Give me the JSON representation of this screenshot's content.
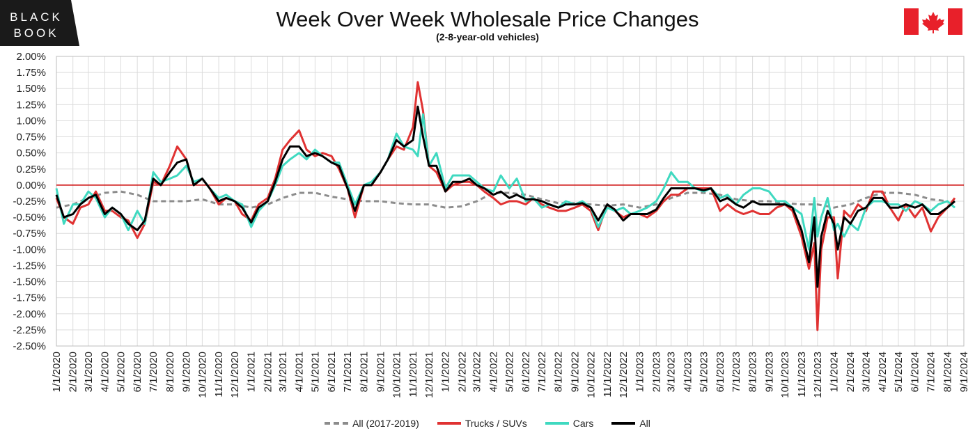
{
  "brand": {
    "logo_line1": "BLACK",
    "logo_line2": "BOOK"
  },
  "header": {
    "title": "Week Over Week Wholesale Price Changes",
    "subtitle": "(2-8-year-old vehicles)"
  },
  "flag_icon": "canada-flag-icon",
  "colors": {
    "trucks": "#e03232",
    "cars": "#3fd9c0",
    "all": "#000000",
    "baseline": "#8c8c8c",
    "zero_line": "#cc0000",
    "grid": "#dcdcdc"
  },
  "chart_data": {
    "type": "line",
    "title": "Week Over Week Wholesale Price Changes",
    "subtitle": "(2-8-year-old vehicles)",
    "xlabel": "",
    "ylabel": "",
    "ylim": [
      -2.5,
      2.0
    ],
    "yticks": [
      "2.00%",
      "1.75%",
      "1.50%",
      "1.25%",
      "1.00%",
      "0.75%",
      "0.50%",
      "0.25%",
      "0.00%",
      "-0.25%",
      "-0.50%",
      "-0.75%",
      "-1.00%",
      "-1.25%",
      "-1.50%",
      "-1.75%",
      "-2.00%",
      "-2.25%",
      "-2.50%"
    ],
    "xticks": [
      "1/1/2020",
      "2/1/2020",
      "3/1/2020",
      "4/1/2020",
      "5/1/2020",
      "6/1/2020",
      "7/1/2020",
      "8/1/2020",
      "9/1/2020",
      "10/1/2020",
      "11/1/2020",
      "12/1/2020",
      "1/1/2021",
      "2/1/2021",
      "3/1/2021",
      "4/1/2021",
      "5/1/2021",
      "6/1/2021",
      "7/1/2021",
      "8/1/2021",
      "9/1/2021",
      "10/1/2021",
      "11/1/2021",
      "12/1/2021",
      "1/1/2022",
      "2/1/2022",
      "3/1/2022",
      "4/1/2022",
      "5/1/2022",
      "6/1/2022",
      "7/1/2022",
      "8/1/2022",
      "9/1/2022",
      "10/1/2022",
      "11/1/2022",
      "12/1/2022",
      "1/1/2023",
      "2/1/2023",
      "3/1/2023",
      "4/1/2023",
      "5/1/2023",
      "6/1/2023",
      "7/1/2023",
      "8/1/2023",
      "9/1/2023",
      "10/1/2023",
      "11/1/2023",
      "12/1/2023",
      "1/1/2024",
      "2/1/2024",
      "3/1/2024",
      "4/1/2024",
      "5/1/2024",
      "6/1/2024",
      "7/1/2024",
      "8/1/2024",
      "9/1/2024"
    ],
    "grid": true,
    "legend_position": "bottom",
    "series": [
      {
        "name": "All (2017-2019)",
        "style": "dashed",
        "color": "#8c8c8c",
        "x": [
          "1/1/2020",
          "2/1/2020",
          "3/1/2020",
          "4/1/2020",
          "5/1/2020",
          "6/1/2020",
          "7/1/2020",
          "8/1/2020",
          "9/1/2020",
          "10/1/2020",
          "11/1/2020",
          "12/1/2020",
          "1/1/2021",
          "2/1/2021",
          "3/1/2021",
          "4/1/2021",
          "5/1/2021",
          "6/1/2021",
          "7/1/2021",
          "8/1/2021",
          "9/1/2021",
          "10/1/2021",
          "11/1/2021",
          "12/1/2021",
          "1/1/2022",
          "2/1/2022",
          "3/1/2022",
          "4/1/2022",
          "5/1/2022",
          "6/1/2022",
          "7/1/2022",
          "8/1/2022",
          "9/1/2022",
          "10/1/2022",
          "11/1/2022",
          "12/1/2022",
          "1/1/2023",
          "2/1/2023",
          "3/1/2023",
          "4/1/2023",
          "5/1/2023",
          "6/1/2023",
          "7/1/2023",
          "8/1/2023",
          "9/1/2023",
          "10/1/2023",
          "11/1/2023",
          "12/1/2023",
          "1/1/2024",
          "2/1/2024",
          "3/1/2024",
          "4/1/2024",
          "5/1/2024",
          "6/1/2024",
          "7/1/2024",
          "8/1/2024"
        ],
        "values": [
          -0.35,
          -0.3,
          -0.2,
          -0.12,
          -0.1,
          -0.15,
          -0.25,
          -0.25,
          -0.25,
          -0.22,
          -0.3,
          -0.3,
          -0.35,
          -0.3,
          -0.2,
          -0.12,
          -0.12,
          -0.18,
          -0.22,
          -0.25,
          -0.25,
          -0.28,
          -0.3,
          -0.3,
          -0.35,
          -0.33,
          -0.25,
          -0.12,
          -0.12,
          -0.15,
          -0.22,
          -0.28,
          -0.28,
          -0.3,
          -0.32,
          -0.3,
          -0.35,
          -0.3,
          -0.2,
          -0.12,
          -0.12,
          -0.15,
          -0.22,
          -0.25,
          -0.25,
          -0.28,
          -0.3,
          -0.3,
          -0.35,
          -0.3,
          -0.2,
          -0.12,
          -0.12,
          -0.15,
          -0.22,
          -0.25
        ]
      },
      {
        "name": "Trucks / SUVs",
        "style": "solid",
        "color": "#e03232",
        "x": [
          "1/1/2020",
          "1/15/2020",
          "2/1/2020",
          "2/15/2020",
          "3/1/2020",
          "3/15/2020",
          "4/1/2020",
          "4/15/2020",
          "5/1/2020",
          "5/15/2020",
          "6/1/2020",
          "6/15/2020",
          "7/1/2020",
          "7/15/2020",
          "8/1/2020",
          "8/15/2020",
          "9/1/2020",
          "9/15/2020",
          "10/1/2020",
          "10/15/2020",
          "11/1/2020",
          "11/15/2020",
          "12/1/2020",
          "12/15/2020",
          "1/1/2021",
          "1/15/2021",
          "2/1/2021",
          "2/15/2021",
          "3/1/2021",
          "3/15/2021",
          "4/1/2021",
          "4/15/2021",
          "5/1/2021",
          "5/15/2021",
          "6/1/2021",
          "6/15/2021",
          "7/1/2021",
          "7/15/2021",
          "8/1/2021",
          "8/15/2021",
          "9/1/2021",
          "9/15/2021",
          "10/1/2021",
          "10/15/2021",
          "11/1/2021",
          "11/10/2021",
          "11/20/2021",
          "12/1/2021",
          "12/15/2021",
          "1/1/2022",
          "1/15/2022",
          "2/1/2022",
          "2/15/2022",
          "3/1/2022",
          "3/15/2022",
          "4/1/2022",
          "4/15/2022",
          "5/1/2022",
          "5/15/2022",
          "6/1/2022",
          "6/15/2022",
          "7/1/2022",
          "7/15/2022",
          "8/1/2022",
          "8/15/2022",
          "9/1/2022",
          "9/15/2022",
          "10/1/2022",
          "10/15/2022",
          "11/1/2022",
          "11/15/2022",
          "12/1/2022",
          "12/15/2022",
          "1/1/2023",
          "1/15/2023",
          "2/1/2023",
          "2/15/2023",
          "3/1/2023",
          "3/15/2023",
          "4/1/2023",
          "4/15/2023",
          "5/1/2023",
          "5/15/2023",
          "6/1/2023",
          "6/15/2023",
          "7/1/2023",
          "7/15/2023",
          "8/1/2023",
          "8/15/2023",
          "9/1/2023",
          "9/15/2023",
          "10/1/2023",
          "10/15/2023",
          "11/1/2023",
          "11/15/2023",
          "11/25/2023",
          "12/1/2023",
          "12/8/2023",
          "12/20/2023",
          "1/1/2024",
          "1/8/2024",
          "1/20/2024",
          "2/1/2024",
          "2/15/2024",
          "3/1/2024",
          "3/15/2024",
          "4/1/2024",
          "4/15/2024",
          "5/1/2024",
          "5/15/2024",
          "6/1/2024",
          "6/15/2024",
          "7/1/2024",
          "7/15/2024",
          "8/1/2024",
          "8/15/2024"
        ],
        "values": [
          -0.2,
          -0.5,
          -0.6,
          -0.35,
          -0.3,
          -0.1,
          -0.4,
          -0.4,
          -0.5,
          -0.55,
          -0.82,
          -0.6,
          0.05,
          0.0,
          0.3,
          0.6,
          0.4,
          0.0,
          0.1,
          -0.05,
          -0.3,
          -0.2,
          -0.25,
          -0.45,
          -0.55,
          -0.3,
          -0.2,
          0.1,
          0.55,
          0.7,
          0.85,
          0.55,
          0.45,
          0.5,
          0.45,
          0.25,
          -0.05,
          -0.5,
          0.0,
          0.0,
          0.2,
          0.4,
          0.6,
          0.55,
          0.9,
          1.6,
          1.15,
          0.3,
          0.2,
          -0.1,
          0.0,
          0.05,
          0.05,
          0.0,
          -0.1,
          -0.2,
          -0.3,
          -0.25,
          -0.25,
          -0.3,
          -0.2,
          -0.3,
          -0.35,
          -0.4,
          -0.4,
          -0.35,
          -0.3,
          -0.4,
          -0.7,
          -0.3,
          -0.4,
          -0.5,
          -0.45,
          -0.45,
          -0.5,
          -0.4,
          -0.25,
          -0.15,
          -0.15,
          -0.05,
          -0.05,
          -0.05,
          -0.05,
          -0.4,
          -0.3,
          -0.4,
          -0.45,
          -0.4,
          -0.45,
          -0.45,
          -0.35,
          -0.3,
          -0.4,
          -0.8,
          -1.3,
          -0.9,
          -2.25,
          -1.0,
          -0.5,
          -0.5,
          -1.45,
          -0.4,
          -0.5,
          -0.3,
          -0.4,
          -0.1,
          -0.1,
          -0.35,
          -0.55,
          -0.3,
          -0.5,
          -0.35,
          -0.72,
          -0.5,
          -0.35,
          -0.2
        ]
      },
      {
        "name": "Cars",
        "style": "solid",
        "color": "#3fd9c0",
        "x": [
          "1/1/2020",
          "1/15/2020",
          "2/1/2020",
          "2/15/2020",
          "3/1/2020",
          "3/15/2020",
          "4/1/2020",
          "4/15/2020",
          "5/1/2020",
          "5/15/2020",
          "6/1/2020",
          "6/15/2020",
          "7/1/2020",
          "7/15/2020",
          "8/1/2020",
          "8/15/2020",
          "9/1/2020",
          "9/15/2020",
          "10/1/2020",
          "10/15/2020",
          "11/1/2020",
          "11/15/2020",
          "12/1/2020",
          "12/15/2020",
          "1/1/2021",
          "1/15/2021",
          "2/1/2021",
          "2/15/2021",
          "3/1/2021",
          "3/15/2021",
          "4/1/2021",
          "4/15/2021",
          "5/1/2021",
          "5/15/2021",
          "6/1/2021",
          "6/15/2021",
          "7/1/2021",
          "7/15/2021",
          "8/1/2021",
          "8/15/2021",
          "9/1/2021",
          "9/15/2021",
          "10/1/2021",
          "10/15/2021",
          "11/1/2021",
          "11/10/2021",
          "11/20/2021",
          "12/1/2021",
          "12/15/2021",
          "1/1/2022",
          "1/15/2022",
          "2/1/2022",
          "2/15/2022",
          "3/1/2022",
          "3/15/2022",
          "4/1/2022",
          "4/15/2022",
          "5/1/2022",
          "5/15/2022",
          "6/1/2022",
          "6/15/2022",
          "7/1/2022",
          "7/15/2022",
          "8/1/2022",
          "8/15/2022",
          "9/1/2022",
          "9/15/2022",
          "10/1/2022",
          "10/15/2022",
          "11/1/2022",
          "11/15/2022",
          "12/1/2022",
          "12/15/2022",
          "1/1/2023",
          "1/15/2023",
          "2/1/2023",
          "2/15/2023",
          "3/1/2023",
          "3/15/2023",
          "4/1/2023",
          "4/15/2023",
          "5/1/2023",
          "5/15/2023",
          "6/1/2023",
          "6/15/2023",
          "7/1/2023",
          "7/15/2023",
          "8/1/2023",
          "8/15/2023",
          "9/1/2023",
          "9/15/2023",
          "10/1/2023",
          "10/15/2023",
          "11/1/2023",
          "11/15/2023",
          "11/25/2023",
          "12/1/2023",
          "12/8/2023",
          "12/20/2023",
          "1/1/2024",
          "1/8/2024",
          "1/20/2024",
          "2/1/2024",
          "2/15/2024",
          "3/1/2024",
          "3/15/2024",
          "4/1/2024",
          "4/15/2024",
          "5/1/2024",
          "5/15/2024",
          "6/1/2024",
          "6/15/2024",
          "7/1/2024",
          "7/15/2024",
          "8/1/2024",
          "8/15/2024"
        ],
        "values": [
          -0.05,
          -0.6,
          -0.3,
          -0.3,
          -0.1,
          -0.2,
          -0.5,
          -0.35,
          -0.45,
          -0.7,
          -0.4,
          -0.6,
          0.2,
          0.05,
          0.1,
          0.15,
          0.3,
          0.05,
          0.1,
          -0.05,
          -0.2,
          -0.15,
          -0.25,
          -0.3,
          -0.65,
          -0.4,
          -0.25,
          0.0,
          0.3,
          0.4,
          0.5,
          0.4,
          0.55,
          0.45,
          0.35,
          0.35,
          0.0,
          -0.3,
          0.0,
          0.05,
          0.2,
          0.4,
          0.8,
          0.6,
          0.55,
          0.45,
          1.1,
          0.3,
          0.5,
          -0.05,
          0.15,
          0.15,
          0.15,
          0.05,
          -0.05,
          -0.1,
          0.15,
          -0.05,
          0.1,
          -0.25,
          -0.2,
          -0.35,
          -0.3,
          -0.35,
          -0.25,
          -0.3,
          -0.25,
          -0.35,
          -0.65,
          -0.35,
          -0.4,
          -0.35,
          -0.45,
          -0.4,
          -0.35,
          -0.25,
          -0.05,
          0.2,
          0.05,
          0.05,
          -0.05,
          -0.1,
          -0.05,
          -0.2,
          -0.15,
          -0.3,
          -0.15,
          -0.05,
          -0.05,
          -0.1,
          -0.25,
          -0.25,
          -0.35,
          -0.45,
          -1.0,
          -0.2,
          -0.8,
          -0.5,
          -0.2,
          -0.7,
          -0.6,
          -0.8,
          -0.6,
          -0.7,
          -0.35,
          -0.25,
          -0.25,
          -0.3,
          -0.3,
          -0.4,
          -0.25,
          -0.3,
          -0.4,
          -0.3,
          -0.25,
          -0.35
        ]
      },
      {
        "name": "All",
        "style": "solid",
        "color": "#000000",
        "x": [
          "1/1/2020",
          "1/15/2020",
          "2/1/2020",
          "2/15/2020",
          "3/1/2020",
          "3/15/2020",
          "4/1/2020",
          "4/15/2020",
          "5/1/2020",
          "5/15/2020",
          "6/1/2020",
          "6/15/2020",
          "7/1/2020",
          "7/15/2020",
          "8/1/2020",
          "8/15/2020",
          "9/1/2020",
          "9/15/2020",
          "10/1/2020",
          "10/15/2020",
          "11/1/2020",
          "11/15/2020",
          "12/1/2020",
          "12/15/2020",
          "1/1/2021",
          "1/15/2021",
          "2/1/2021",
          "2/15/2021",
          "3/1/2021",
          "3/15/2021",
          "4/1/2021",
          "4/15/2021",
          "5/1/2021",
          "5/15/2021",
          "6/1/2021",
          "6/15/2021",
          "7/1/2021",
          "7/15/2021",
          "8/1/2021",
          "8/15/2021",
          "9/1/2021",
          "9/15/2021",
          "10/1/2021",
          "10/15/2021",
          "11/1/2021",
          "11/10/2021",
          "11/20/2021",
          "12/1/2021",
          "12/15/2021",
          "1/1/2022",
          "1/15/2022",
          "2/1/2022",
          "2/15/2022",
          "3/1/2022",
          "3/15/2022",
          "4/1/2022",
          "4/15/2022",
          "5/1/2022",
          "5/15/2022",
          "6/1/2022",
          "6/15/2022",
          "7/1/2022",
          "7/15/2022",
          "8/1/2022",
          "8/15/2022",
          "9/1/2022",
          "9/15/2022",
          "10/1/2022",
          "10/15/2022",
          "11/1/2022",
          "11/15/2022",
          "12/1/2022",
          "12/15/2022",
          "1/1/2023",
          "1/15/2023",
          "2/1/2023",
          "2/15/2023",
          "3/1/2023",
          "3/15/2023",
          "4/1/2023",
          "4/15/2023",
          "5/1/2023",
          "5/15/2023",
          "6/1/2023",
          "6/15/2023",
          "7/1/2023",
          "7/15/2023",
          "8/1/2023",
          "8/15/2023",
          "9/1/2023",
          "9/15/2023",
          "10/1/2023",
          "10/15/2023",
          "11/1/2023",
          "11/15/2023",
          "11/25/2023",
          "12/1/2023",
          "12/8/2023",
          "12/20/2023",
          "1/1/2024",
          "1/8/2024",
          "1/20/2024",
          "2/1/2024",
          "2/15/2024",
          "3/1/2024",
          "3/15/2024",
          "4/1/2024",
          "4/15/2024",
          "5/1/2024",
          "5/15/2024",
          "6/1/2024",
          "6/15/2024",
          "7/1/2024",
          "7/15/2024",
          "8/1/2024",
          "8/15/2024"
        ],
        "values": [
          -0.15,
          -0.5,
          -0.45,
          -0.3,
          -0.2,
          -0.15,
          -0.45,
          -0.35,
          -0.45,
          -0.6,
          -0.7,
          -0.55,
          0.1,
          0.0,
          0.2,
          0.35,
          0.4,
          0.0,
          0.1,
          -0.05,
          -0.25,
          -0.2,
          -0.25,
          -0.35,
          -0.58,
          -0.35,
          -0.25,
          0.05,
          0.4,
          0.6,
          0.6,
          0.45,
          0.5,
          0.45,
          0.35,
          0.3,
          -0.05,
          -0.4,
          0.0,
          0.0,
          0.2,
          0.4,
          0.7,
          0.6,
          0.7,
          1.22,
          0.75,
          0.3,
          0.3,
          -0.1,
          0.05,
          0.05,
          0.1,
          0.0,
          -0.05,
          -0.15,
          -0.1,
          -0.2,
          -0.15,
          -0.22,
          -0.22,
          -0.25,
          -0.3,
          -0.35,
          -0.3,
          -0.3,
          -0.28,
          -0.35,
          -0.55,
          -0.3,
          -0.38,
          -0.55,
          -0.45,
          -0.45,
          -0.45,
          -0.38,
          -0.2,
          -0.05,
          -0.05,
          -0.05,
          -0.05,
          -0.08,
          -0.05,
          -0.25,
          -0.2,
          -0.3,
          -0.35,
          -0.25,
          -0.3,
          -0.3,
          -0.3,
          -0.3,
          -0.35,
          -0.7,
          -1.2,
          -0.5,
          -1.58,
          -0.8,
          -0.4,
          -0.6,
          -1.0,
          -0.5,
          -0.6,
          -0.4,
          -0.35,
          -0.2,
          -0.2,
          -0.35,
          -0.35,
          -0.3,
          -0.35,
          -0.3,
          -0.45,
          -0.45,
          -0.35,
          -0.25
        ]
      }
    ]
  },
  "legend": {
    "items": [
      "All (2017-2019)",
      "Trucks / SUVs",
      "Cars",
      "All"
    ]
  }
}
